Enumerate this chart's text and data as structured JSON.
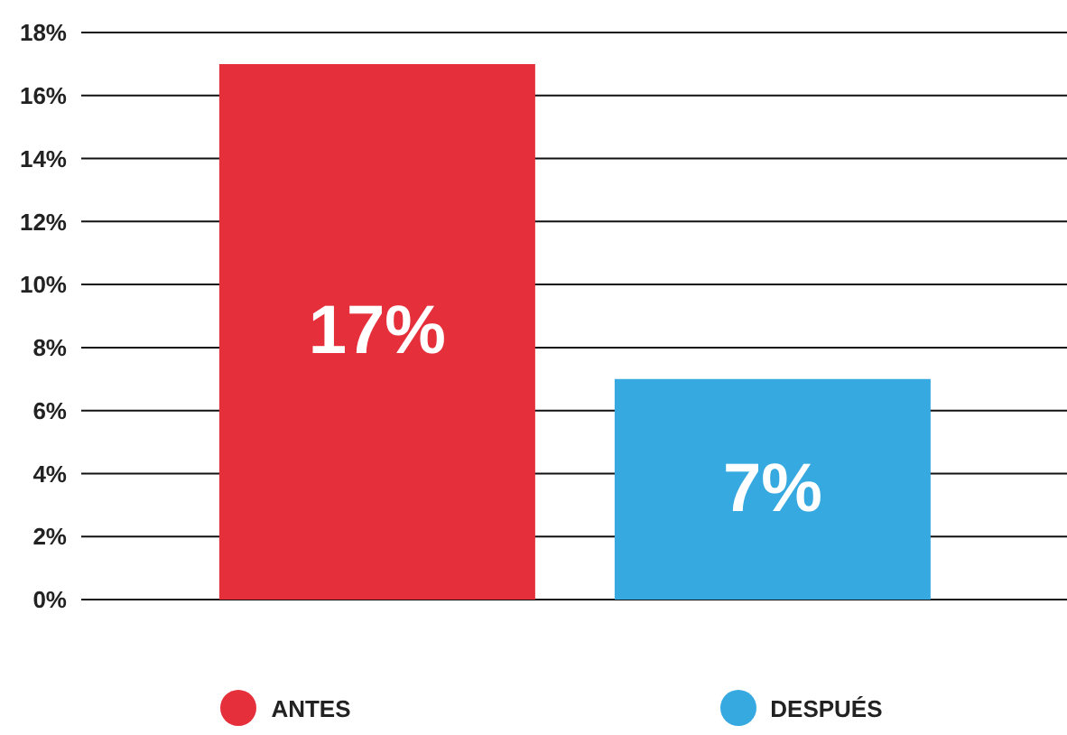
{
  "chart_data": {
    "type": "bar",
    "categories": [
      null
    ],
    "series": [
      {
        "name": "ANTES",
        "color": "#e5303c",
        "values": [
          17
        ],
        "value_labels": [
          "17%"
        ]
      },
      {
        "name": "DESPUÉS",
        "color": "#36a9e1",
        "values": [
          7
        ],
        "value_labels": [
          "7%"
        ]
      }
    ],
    "ylim": [
      0,
      18
    ],
    "yticks": [
      {
        "value": 0,
        "label": "0%"
      },
      {
        "value": 2,
        "label": "2%"
      },
      {
        "value": 4,
        "label": "4%"
      },
      {
        "value": 6,
        "label": "6%"
      },
      {
        "value": 8,
        "label": "8%"
      },
      {
        "value": 10,
        "label": "10%"
      },
      {
        "value": 12,
        "label": "12%"
      },
      {
        "value": 14,
        "label": "14%"
      },
      {
        "value": 16,
        "label": "16%"
      },
      {
        "value": 18,
        "label": "18%"
      }
    ],
    "grid": "y",
    "legend": "bottom"
  }
}
